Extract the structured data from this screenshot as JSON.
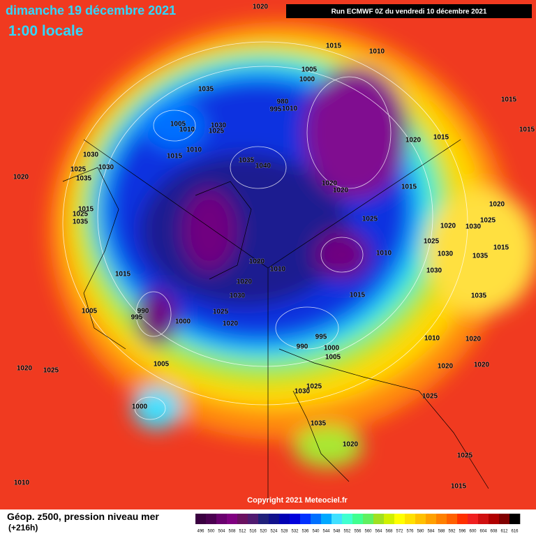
{
  "header": {
    "date": "dimanche 19 décembre 2021",
    "time": "1:00 locale",
    "run": "Run ECMWF 0Z du vendredi 10 décembre 2021"
  },
  "copyright": "Copyright 2021 Meteociel.fr",
  "footer": {
    "title": "Géop. z500, pression niveau mer",
    "lead": "(+216h)"
  },
  "legend": {
    "ticks": [
      496,
      500,
      504,
      508,
      512,
      516,
      520,
      524,
      528,
      532,
      536,
      540,
      544,
      548,
      552,
      556,
      560,
      564,
      568,
      572,
      576,
      580,
      584,
      588,
      592,
      596,
      600,
      604,
      608,
      612,
      616
    ],
    "colors": [
      "#3a0040",
      "#4b0050",
      "#6a006e",
      "#800080",
      "#6a1060",
      "#501a70",
      "#20207a",
      "#10108c",
      "#0000b4",
      "#0000dc",
      "#0030ff",
      "#0070ff",
      "#00a8ff",
      "#40e0ff",
      "#40ffd0",
      "#40ff90",
      "#60f060",
      "#a0e020",
      "#d0f000",
      "#ffff00",
      "#ffe000",
      "#ffc000",
      "#ffa000",
      "#ff8000",
      "#ff6000",
      "#ff3000",
      "#f02020",
      "#d01010",
      "#b00000",
      "#800000",
      "#000000"
    ]
  },
  "isobars": [
    "1020",
    "1015",
    "1010",
    "1005",
    "1000",
    "980",
    "995",
    "1035",
    "1005",
    "1010",
    "1030",
    "1025",
    "1015",
    "1010",
    "1035",
    "1040",
    "1020",
    "1020",
    "1020",
    "1015",
    "1015",
    "1025",
    "1010",
    "1020",
    "1010",
    "1020",
    "1030",
    "1015",
    "1025",
    "1020",
    "1015",
    "990",
    "995",
    "1000",
    "1005",
    "1005",
    "990",
    "995",
    "1000",
    "1005",
    "1020",
    "1025",
    "1000",
    "1025",
    "1030",
    "1035",
    "1020",
    "1025",
    "1010",
    "1020",
    "1020",
    "1020",
    "1035",
    "1030",
    "1025",
    "1030",
    "1020",
    "1030",
    "1025",
    "1020",
    "1015",
    "1035",
    "1015",
    "1015",
    "1010",
    "1015",
    "1025",
    "1030",
    "1030",
    "1025",
    "1035",
    "1020",
    "1015",
    "1025",
    "1035",
    "1010"
  ]
}
